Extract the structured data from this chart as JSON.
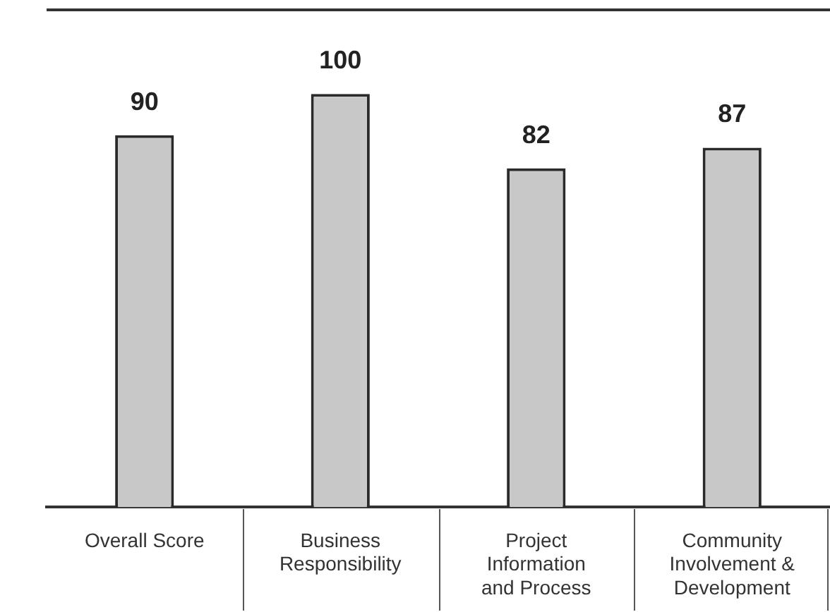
{
  "chart_data": {
    "type": "bar",
    "categories": [
      "Overall Score",
      "Business Responsibility",
      "Project Information and Process",
      "Community Involvement & Development"
    ],
    "values": [
      90,
      100,
      82,
      87
    ],
    "color": "#c8c8c8",
    "data_labels": true,
    "tick_labels": "x",
    "grid": false,
    "legend": false
  }
}
